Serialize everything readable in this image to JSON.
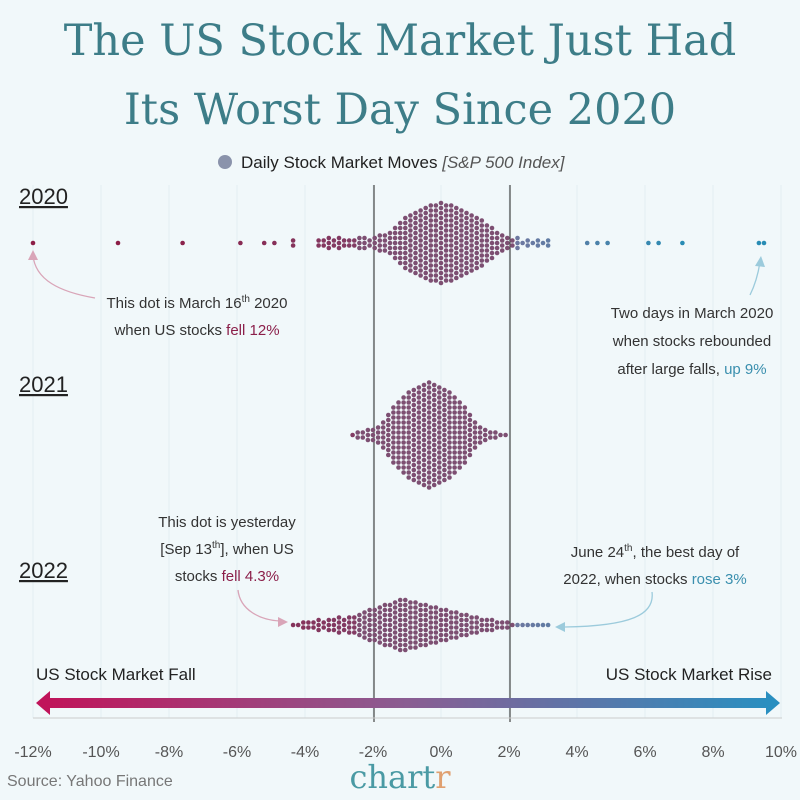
{
  "title_line1": "The US Stock Market Just Had",
  "title_line2": "Its Worst Day Since 2020",
  "legend": {
    "label": "Daily Stock Market Moves",
    "sub": "[S&P 500 Index]",
    "color": "#8a93ab"
  },
  "annotations": {
    "mar16": {
      "l1": "This dot is March 16",
      "sup": "th",
      "l1b": " 2020",
      "l2a": "when US stocks ",
      "l2b": "fell 12%"
    },
    "rebound": {
      "l1": "Two days in March 2020",
      "l2": "when stocks rebounded",
      "l3a": "after large falls, ",
      "l3b": "up 9%"
    },
    "sep13": {
      "l1": "This dot is yesterday",
      "l2a": "[Sep 13",
      "sup": "th",
      "l2b": "], when US",
      "l3a": "stocks ",
      "l3b": "fell 4.3%"
    },
    "jun24": {
      "l1a": "June 24",
      "sup": "th",
      "l1b": ", the best day of",
      "l2a": "2022, when stocks ",
      "l2b": "rose 3%"
    }
  },
  "fall_label": "US Stock Market Fall",
  "rise_label": "US Stock Market Rise",
  "source": "Source: Yahoo Finance",
  "logo": {
    "main": "chart",
    "end": "r"
  },
  "colors": {
    "fall": "#c0145a",
    "mid": "#7a5578",
    "rise": "#2a8fc0",
    "title": "#3d7d88"
  },
  "chart_data": {
    "type": "beeswarm",
    "xlabel": "",
    "xlim": [
      -12,
      10
    ],
    "xticks": [
      "-12%",
      "-10%",
      "-8%",
      "-6%",
      "-4%",
      "-2%",
      "0%",
      "2%",
      "4%",
      "6%",
      "8%",
      "10%"
    ],
    "reference_lines": [
      -2,
      2
    ],
    "bin_step": 0.15,
    "series": [
      {
        "name": "2020",
        "bin_start": -3.6,
        "bin_counts": [
          2,
          2,
          3,
          2,
          3,
          2,
          2,
          2,
          3,
          3,
          2,
          3,
          4,
          4,
          5,
          7,
          9,
          11,
          12,
          13,
          14,
          15,
          16,
          16,
          17,
          16,
          16,
          15,
          14,
          13,
          12,
          11,
          10,
          8,
          7,
          5,
          4,
          3,
          2,
          3,
          1,
          2,
          1,
          2,
          1,
          2
        ],
        "outliers": [
          -12.0,
          -9.5,
          -7.6,
          -5.9,
          -5.2,
          -4.9,
          -4.35,
          -4.35,
          4.3,
          4.6,
          4.9,
          6.1,
          6.4,
          7.1,
          9.35,
          9.5
        ]
      },
      {
        "name": "2021",
        "bin_start": -2.6,
        "bin_counts": [
          1,
          2,
          2,
          3,
          3,
          4,
          6,
          9,
          12,
          14,
          16,
          18,
          19,
          20,
          21,
          22,
          21,
          20,
          19,
          18,
          16,
          14,
          12,
          9,
          6,
          4,
          3,
          2,
          2,
          1,
          1
        ],
        "outliers": []
      },
      {
        "name": "2022",
        "bin_start": -4.35,
        "bin_counts": [
          1,
          1,
          2,
          2,
          2,
          3,
          2,
          3,
          3,
          4,
          3,
          4,
          4,
          5,
          6,
          7,
          7,
          8,
          9,
          9,
          10,
          11,
          11,
          10,
          10,
          9,
          9,
          8,
          8,
          7,
          7,
          6,
          6,
          5,
          5,
          4,
          4,
          3,
          3,
          3,
          2,
          2,
          2,
          1,
          1,
          1,
          1,
          1,
          1,
          1,
          1
        ],
        "outliers": []
      }
    ]
  }
}
